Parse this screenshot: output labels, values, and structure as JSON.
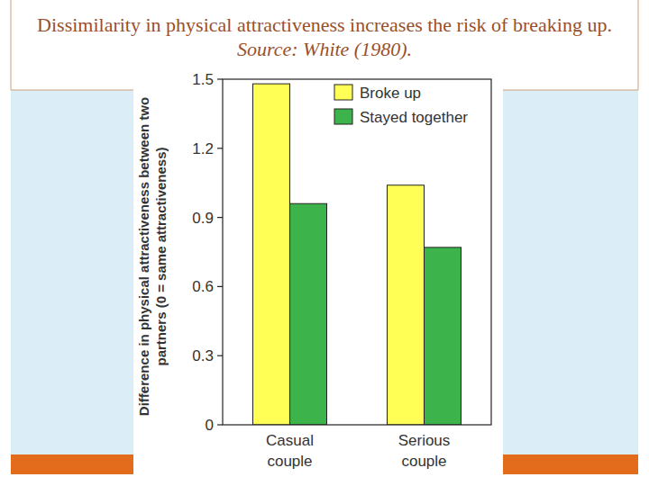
{
  "chart_data": {
    "type": "bar",
    "title": "Dissimilarity in physical attractiveness increases the risk of breaking up.",
    "subtitle": "Source: White (1980).",
    "ylabel": "Difference in physical attractiveness between two partners (0 = same attractiveness)",
    "categories": [
      "Casual couple",
      "Serious couple"
    ],
    "series": [
      {
        "name": "Broke up",
        "color": "#ffff55",
        "values": [
          1.48,
          1.04
        ]
      },
      {
        "name": "Stayed together",
        "color": "#3cb44b",
        "values": [
          0.96,
          0.77
        ]
      }
    ],
    "ylim": [
      0,
      1.5
    ],
    "yticks": [
      0,
      0.3,
      0.6,
      0.9,
      1.2,
      1.5
    ],
    "grid": false,
    "legend": "upper right"
  }
}
